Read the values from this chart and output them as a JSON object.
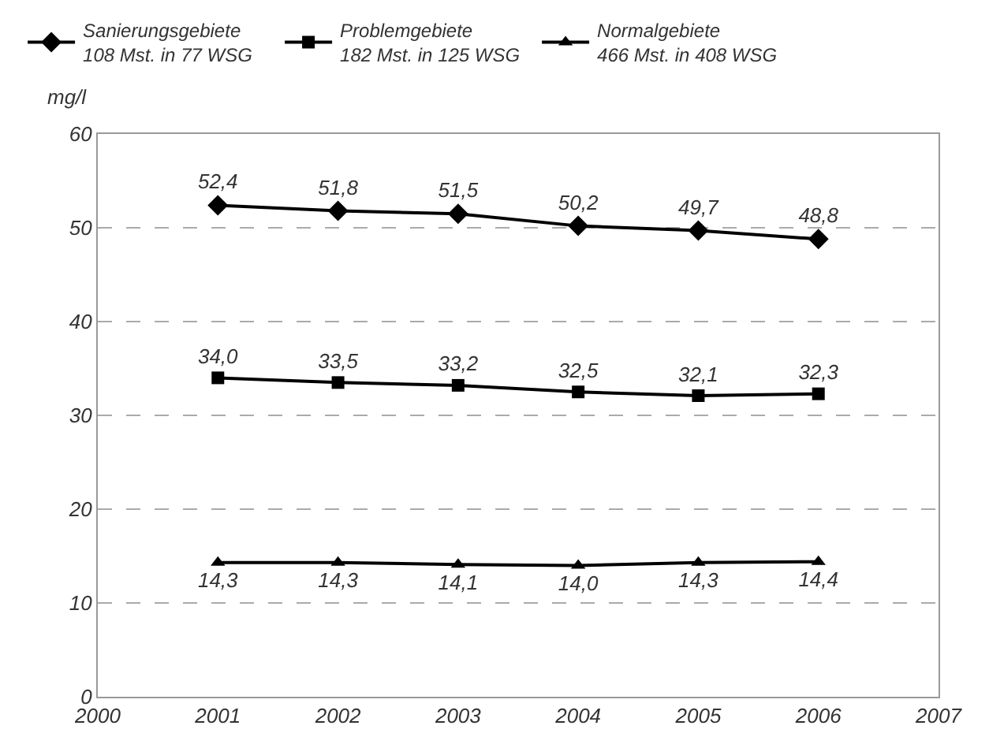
{
  "chart_data": {
    "type": "line",
    "ylabel": "mg/l",
    "x": [
      2001,
      2002,
      2003,
      2004,
      2005,
      2006
    ],
    "xlim": [
      2000,
      2007
    ],
    "xticks": [
      2000,
      2001,
      2002,
      2003,
      2004,
      2005,
      2006,
      2007
    ],
    "ylim": [
      0,
      60
    ],
    "yticks": [
      0,
      10,
      20,
      30,
      40,
      50,
      60
    ],
    "grid": "y",
    "legend": "top",
    "line_style": "solid",
    "series": [
      {
        "name": "Sanierungsgebiete\n108 Mst. in 77 WSG",
        "color": "#000000",
        "marker": "diamond",
        "values": [
          52.4,
          51.8,
          51.5,
          50.2,
          49.7,
          48.8
        ],
        "value_labels": [
          "52,4",
          "51,8",
          "51,5",
          "50,2",
          "49,7",
          "48,8"
        ]
      },
      {
        "name": "Problemgebiete\n182 Mst. in 125 WSG",
        "color": "#000000",
        "marker": "square",
        "values": [
          34.0,
          33.5,
          33.2,
          32.5,
          32.1,
          32.3
        ],
        "value_labels": [
          "34,0",
          "33,5",
          "33,2",
          "32,5",
          "32,1",
          "32,3"
        ]
      },
      {
        "name": "Normalgebiete\n466 Mst. in 408 WSG",
        "color": "#000000",
        "marker": "triangle",
        "values": [
          14.3,
          14.3,
          14.1,
          14.0,
          14.3,
          14.4
        ],
        "value_labels": [
          "14,3",
          "14,3",
          "14,1",
          "14,0",
          "14,3",
          "14,4"
        ]
      }
    ]
  }
}
